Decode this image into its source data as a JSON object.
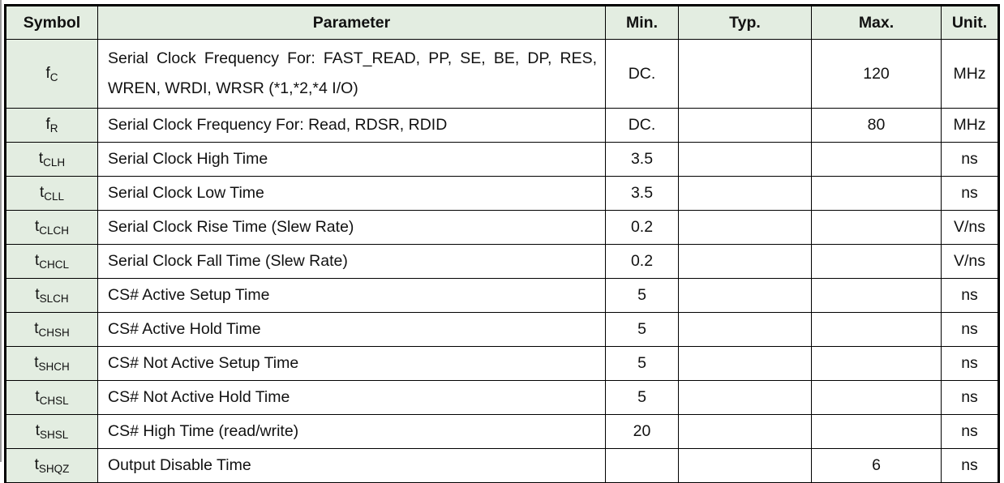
{
  "table": {
    "headers": {
      "symbol": "Symbol",
      "parameter": "Parameter",
      "min": "Min.",
      "typ": "Typ.",
      "max": "Max.",
      "unit": "Unit."
    },
    "rows": [
      {
        "sym_base": "f",
        "sym_sub": "C",
        "parameter": "Serial Clock Frequency For: FAST_READ, PP, SE, BE, DP, RES, WREN, WRDI, WRSR (*1,*2,*4 I/O)",
        "min": "DC.",
        "typ": "",
        "max": "120",
        "unit": "MHz"
      },
      {
        "sym_base": "f",
        "sym_sub": "R",
        "parameter": "Serial Clock Frequency For: Read, RDSR, RDID",
        "min": "DC.",
        "typ": "",
        "max": "80",
        "unit": "MHz"
      },
      {
        "sym_base": "t",
        "sym_sub": "CLH",
        "parameter": "Serial Clock High Time",
        "min": "3.5",
        "typ": "",
        "max": "",
        "unit": "ns"
      },
      {
        "sym_base": "t",
        "sym_sub": "CLL",
        "parameter": "Serial Clock Low Time",
        "min": "3.5",
        "typ": "",
        "max": "",
        "unit": "ns"
      },
      {
        "sym_base": "t",
        "sym_sub": "CLCH",
        "parameter": "Serial Clock Rise Time (Slew Rate)",
        "min": "0.2",
        "typ": "",
        "max": "",
        "unit": "V/ns"
      },
      {
        "sym_base": "t",
        "sym_sub": "CHCL",
        "parameter": "Serial Clock Fall Time (Slew Rate)",
        "min": "0.2",
        "typ": "",
        "max": "",
        "unit": "V/ns"
      },
      {
        "sym_base": "t",
        "sym_sub": "SLCH",
        "parameter": "CS# Active Setup Time",
        "min": "5",
        "typ": "",
        "max": "",
        "unit": "ns"
      },
      {
        "sym_base": "t",
        "sym_sub": "CHSH",
        "parameter": "CS# Active Hold Time",
        "min": "5",
        "typ": "",
        "max": "",
        "unit": "ns"
      },
      {
        "sym_base": "t",
        "sym_sub": "SHCH",
        "parameter": "CS# Not Active Setup Time",
        "min": "5",
        "typ": "",
        "max": "",
        "unit": "ns"
      },
      {
        "sym_base": "t",
        "sym_sub": "CHSL",
        "parameter": "CS# Not Active Hold Time",
        "min": "5",
        "typ": "",
        "max": "",
        "unit": "ns"
      },
      {
        "sym_base": "t",
        "sym_sub": "SHSL",
        "parameter": "CS# High Time (read/write)",
        "min": "20",
        "typ": "",
        "max": "",
        "unit": "ns"
      },
      {
        "sym_base": "t",
        "sym_sub": "SHQZ",
        "parameter": "Output Disable Time",
        "min": "",
        "typ": "",
        "max": "6",
        "unit": "ns"
      }
    ]
  }
}
